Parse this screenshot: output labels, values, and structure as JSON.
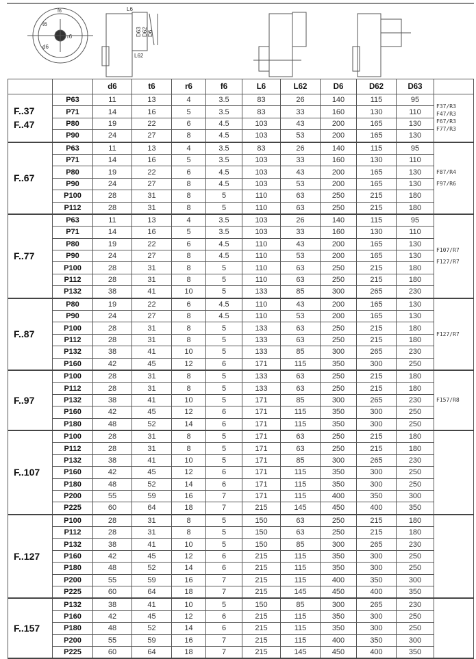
{
  "drawing_labels": {
    "flange": [
      "t6",
      "r6",
      "d6",
      "f6"
    ],
    "side": [
      "L6",
      "D63",
      "D62",
      "D6",
      "L62"
    ]
  },
  "columns": [
    "",
    "",
    "d6",
    "t6",
    "r6",
    "f6",
    "L6",
    "L62",
    "D6",
    "D62",
    "D63",
    ""
  ],
  "groups": [
    {
      "label": [
        "F..37",
        "F..47"
      ],
      "note": [
        "F37/R3",
        "F47/R3",
        "F67/R3",
        "F77/R3"
      ],
      "rows": [
        [
          "P63",
          11,
          13,
          4,
          3.5,
          83,
          26,
          140,
          115,
          95
        ],
        [
          "P71",
          14,
          16,
          5,
          3.5,
          83,
          33,
          160,
          130,
          110
        ],
        [
          "P80",
          19,
          22,
          6,
          4.5,
          103,
          43,
          200,
          165,
          130
        ],
        [
          "P90",
          24,
          27,
          8,
          4.5,
          103,
          53,
          200,
          165,
          130
        ]
      ]
    },
    {
      "label": [
        "F..67"
      ],
      "note": [
        "F87/R4",
        "F97/R6"
      ],
      "rows": [
        [
          "P63",
          11,
          13,
          4,
          3.5,
          83,
          26,
          140,
          115,
          95
        ],
        [
          "P71",
          14,
          16,
          5,
          3.5,
          103,
          33,
          160,
          130,
          110
        ],
        [
          "P80",
          19,
          22,
          6,
          4.5,
          103,
          43,
          200,
          165,
          130
        ],
        [
          "P90",
          24,
          27,
          8,
          4.5,
          103,
          53,
          200,
          165,
          130
        ],
        [
          "P100",
          28,
          31,
          8,
          5,
          110,
          63,
          250,
          215,
          180
        ],
        [
          "P112",
          28,
          31,
          8,
          5,
          110,
          63,
          250,
          215,
          180
        ]
      ]
    },
    {
      "label": [
        "F..77"
      ],
      "note": [
        "F107/R7",
        "F127/R7"
      ],
      "rows": [
        [
          "P63",
          11,
          13,
          4,
          3.5,
          103,
          26,
          140,
          115,
          95
        ],
        [
          "P71",
          14,
          16,
          5,
          3.5,
          103,
          33,
          160,
          130,
          110
        ],
        [
          "P80",
          19,
          22,
          6,
          4.5,
          110,
          43,
          200,
          165,
          130
        ],
        [
          "P90",
          24,
          27,
          8,
          4.5,
          110,
          53,
          200,
          165,
          130
        ],
        [
          "P100",
          28,
          31,
          8,
          5,
          110,
          63,
          250,
          215,
          180
        ],
        [
          "P112",
          28,
          31,
          8,
          5,
          110,
          63,
          250,
          215,
          180
        ],
        [
          "P132",
          38,
          41,
          10,
          5,
          133,
          85,
          300,
          265,
          230
        ]
      ]
    },
    {
      "label": [
        "F..87"
      ],
      "note": [
        "F127/R7"
      ],
      "rows": [
        [
          "P80",
          19,
          22,
          6,
          4.5,
          110,
          43,
          200,
          165,
          130
        ],
        [
          "P90",
          24,
          27,
          8,
          4.5,
          110,
          53,
          200,
          165,
          130
        ],
        [
          "P100",
          28,
          31,
          8,
          5,
          133,
          63,
          250,
          215,
          180
        ],
        [
          "P112",
          28,
          31,
          8,
          5,
          133,
          63,
          250,
          215,
          180
        ],
        [
          "P132",
          38,
          41,
          10,
          5,
          133,
          85,
          300,
          265,
          230
        ],
        [
          "P160",
          42,
          45,
          12,
          6,
          171,
          115,
          350,
          300,
          250
        ]
      ]
    },
    {
      "label": [
        "F..97"
      ],
      "note": [
        "F157/R8"
      ],
      "rows": [
        [
          "P100",
          28,
          31,
          8,
          5,
          133,
          63,
          250,
          215,
          180
        ],
        [
          "P112",
          28,
          31,
          8,
          5,
          133,
          63,
          250,
          215,
          180
        ],
        [
          "P132",
          38,
          41,
          10,
          5,
          171,
          85,
          300,
          265,
          230
        ],
        [
          "P160",
          42,
          45,
          12,
          6,
          171,
          115,
          350,
          300,
          250
        ],
        [
          "P180",
          48,
          52,
          14,
          6,
          171,
          115,
          350,
          300,
          250
        ]
      ]
    },
    {
      "label": [
        "F..107"
      ],
      "note": [],
      "rows": [
        [
          "P100",
          28,
          31,
          8,
          5,
          171,
          63,
          250,
          215,
          180
        ],
        [
          "P112",
          28,
          31,
          8,
          5,
          171,
          63,
          250,
          215,
          180
        ],
        [
          "P132",
          38,
          41,
          10,
          5,
          171,
          85,
          300,
          265,
          230
        ],
        [
          "P160",
          42,
          45,
          12,
          6,
          171,
          115,
          350,
          300,
          250
        ],
        [
          "P180",
          48,
          52,
          14,
          6,
          171,
          115,
          350,
          300,
          250
        ],
        [
          "P200",
          55,
          59,
          16,
          7,
          171,
          115,
          400,
          350,
          300
        ],
        [
          "P225",
          60,
          64,
          18,
          7,
          215,
          145,
          450,
          400,
          350
        ]
      ]
    },
    {
      "label": [
        "F..127"
      ],
      "note": [],
      "rows": [
        [
          "P100",
          28,
          31,
          8,
          5,
          150,
          63,
          250,
          215,
          180
        ],
        [
          "P112",
          28,
          31,
          8,
          5,
          150,
          63,
          250,
          215,
          180
        ],
        [
          "P132",
          38,
          41,
          10,
          5,
          150,
          85,
          300,
          265,
          230
        ],
        [
          "P160",
          42,
          45,
          12,
          6,
          215,
          115,
          350,
          300,
          250
        ],
        [
          "P180",
          48,
          52,
          14,
          6,
          215,
          115,
          350,
          300,
          250
        ],
        [
          "P200",
          55,
          59,
          16,
          7,
          215,
          115,
          400,
          350,
          300
        ],
        [
          "P225",
          60,
          64,
          18,
          7,
          215,
          145,
          450,
          400,
          350
        ]
      ]
    },
    {
      "label": [
        "F..157"
      ],
      "note": [],
      "rows": [
        [
          "P132",
          38,
          41,
          10,
          5,
          150,
          85,
          300,
          265,
          230
        ],
        [
          "P160",
          42,
          45,
          12,
          6,
          215,
          115,
          350,
          300,
          250
        ],
        [
          "P180",
          48,
          52,
          14,
          6,
          215,
          115,
          350,
          300,
          250
        ],
        [
          "P200",
          55,
          59,
          16,
          7,
          215,
          115,
          400,
          350,
          300
        ],
        [
          "P225",
          60,
          64,
          18,
          7,
          215,
          145,
          450,
          400,
          350
        ]
      ]
    }
  ]
}
